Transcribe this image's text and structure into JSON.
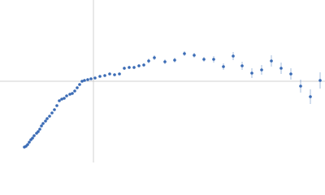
{
  "chart_data": {
    "type": "scatter",
    "color": "#3a6bb5",
    "x": [
      -85,
      -83,
      -81,
      -79,
      -77,
      -75,
      -73,
      -70,
      -68,
      -66,
      -64,
      -62,
      -59,
      -57,
      -54,
      -51,
      -48,
      -45,
      -42,
      -39,
      -36,
      -33,
      -29,
      -26,
      -23,
      -20,
      -17,
      -14,
      -11,
      -7,
      -3,
      2,
      8,
      14,
      20,
      26,
      32,
      38,
      44,
      50,
      56,
      62,
      68,
      75,
      88,
      100,
      112,
      124,
      136,
      148,
      160,
      172,
      183,
      195,
      207,
      219,
      231,
      243,
      255,
      267,
      279
    ],
    "values": [
      -81,
      -80,
      -78,
      -75,
      -72,
      -70,
      -67,
      -64,
      -62,
      -59,
      -55,
      -52,
      -49,
      -46,
      -43,
      -39,
      -35,
      -30,
      -24,
      -22,
      -21,
      -18,
      -16,
      -15,
      -12,
      -8,
      -4,
      0,
      1,
      2,
      3,
      4,
      6,
      7,
      9,
      8,
      9,
      16,
      17,
      17,
      19,
      20,
      25,
      29,
      24,
      26,
      34,
      32,
      27,
      27,
      18,
      31,
      19,
      10,
      14,
      25,
      16,
      9,
      -6,
      -19,
      1
    ],
    "errors": [
      1,
      1,
      1,
      1,
      1,
      1,
      1,
      1,
      1,
      1,
      1,
      1,
      1,
      1,
      1,
      1,
      1,
      1,
      1,
      1,
      1,
      1,
      1,
      1,
      1,
      1,
      1,
      1,
      1,
      1,
      1,
      1,
      1,
      1,
      1,
      1,
      1,
      2,
      2,
      2,
      2,
      2,
      3,
      3,
      3,
      3,
      3,
      3,
      3,
      4,
      4,
      5,
      5,
      6,
      6,
      7,
      7,
      7,
      8,
      9,
      10
    ],
    "xlim": [
      -115,
      285
    ],
    "ylim": [
      -100,
      100
    ]
  }
}
